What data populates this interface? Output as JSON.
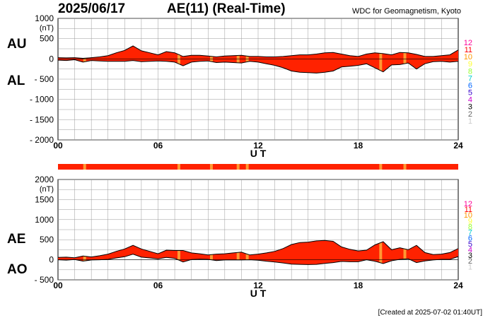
{
  "header": {
    "date": "2025/06/17",
    "title": "AE(11) (Real-Time)",
    "source": "WDC for Geomagnetism, Kyoto"
  },
  "footer": {
    "created": "[Created at 2025-07-02 01:40UT]"
  },
  "legend": {
    "labels": [
      "12",
      "11",
      "10",
      "9",
      "8",
      "7",
      "6",
      "5",
      "4",
      "3",
      "2",
      "1"
    ],
    "colors": [
      "#ff0099",
      "#ff0000",
      "#ff9900",
      "#ffff33",
      "#99ff33",
      "#00cccc",
      "#0066ff",
      "#3300cc",
      "#cc00cc",
      "#000000",
      "#666666",
      "#cccccc"
    ]
  },
  "colors": {
    "fill": "#ff2200",
    "low_station": "#ff9933",
    "outline": "#000000",
    "grid": "#999999"
  },
  "chart_data": [
    {
      "type": "area",
      "panel": "AU/AL",
      "series_labels": [
        "AU",
        "AL"
      ],
      "ylabel": "(nT)",
      "xlabel": "U T",
      "xlim": [
        0,
        24
      ],
      "ylim": [
        -2000,
        1000
      ],
      "xticks": [
        0,
        6,
        12,
        18,
        24
      ],
      "xtick_labels": [
        "00",
        "06",
        "12",
        "18",
        "24"
      ],
      "yticks": [
        1000,
        500,
        0,
        -500,
        -1000,
        -1500,
        -2000
      ],
      "ytick_labels": [
        "1000",
        "500",
        "0",
        "- 500",
        "- 1000",
        "- 1500",
        "- 2000"
      ],
      "grid": true,
      "x_hours": [
        0,
        0.5,
        1,
        1.5,
        2,
        2.5,
        3,
        3.5,
        4,
        4.5,
        5,
        5.5,
        6,
        6.5,
        7,
        7.5,
        8,
        8.5,
        9,
        9.5,
        10,
        10.5,
        11,
        11.5,
        12,
        12.5,
        13,
        13.5,
        14,
        14.5,
        15,
        15.5,
        16,
        16.5,
        17,
        17.5,
        18,
        18.5,
        19,
        19.5,
        20,
        20.5,
        21,
        21.5,
        22,
        22.5,
        23,
        23.5,
        24
      ],
      "AU": [
        30,
        25,
        30,
        15,
        30,
        50,
        80,
        150,
        210,
        320,
        200,
        150,
        100,
        180,
        150,
        60,
        90,
        90,
        70,
        50,
        70,
        80,
        90,
        60,
        60,
        50,
        50,
        60,
        80,
        100,
        100,
        120,
        150,
        160,
        120,
        80,
        60,
        120,
        150,
        130,
        100,
        160,
        150,
        110,
        60,
        60,
        80,
        100,
        220
      ],
      "AL": [
        -30,
        -40,
        -20,
        -80,
        -40,
        -50,
        -60,
        -60,
        -60,
        -40,
        -70,
        -60,
        -50,
        -60,
        -80,
        -170,
        -80,
        -60,
        -50,
        -90,
        -80,
        -90,
        -100,
        -60,
        -80,
        -120,
        -160,
        -220,
        -300,
        -330,
        -340,
        -350,
        -330,
        -300,
        -200,
        -180,
        -160,
        -120,
        -220,
        -320,
        -150,
        -140,
        -100,
        -250,
        -120,
        -70,
        -60,
        -80,
        -60
      ]
    },
    {
      "type": "area",
      "panel": "AE/AO",
      "series_labels": [
        "AE",
        "AO"
      ],
      "ylabel": "(nT)",
      "xlabel": "U T",
      "xlim": [
        0,
        24
      ],
      "ylim": [
        -500,
        2000
      ],
      "xticks": [
        0,
        6,
        12,
        18,
        24
      ],
      "xtick_labels": [
        "00",
        "06",
        "12",
        "18",
        "24"
      ],
      "yticks": [
        2000,
        1500,
        1000,
        500,
        0,
        -500
      ],
      "ytick_labels": [
        "2000",
        "1500",
        "1000",
        "500",
        "0",
        "- 500"
      ],
      "grid": true,
      "x_hours": [
        0,
        0.5,
        1,
        1.5,
        2,
        2.5,
        3,
        3.5,
        4,
        4.5,
        5,
        5.5,
        6,
        6.5,
        7,
        7.5,
        8,
        8.5,
        9,
        9.5,
        10,
        10.5,
        11,
        11.5,
        12,
        12.5,
        13,
        13.5,
        14,
        14.5,
        15,
        15.5,
        16,
        16.5,
        17,
        17.5,
        18,
        18.5,
        19,
        19.5,
        20,
        20.5,
        21,
        21.5,
        22,
        22.5,
        23,
        23.5,
        24
      ],
      "AE": [
        60,
        65,
        50,
        95,
        70,
        100,
        140,
        210,
        270,
        360,
        270,
        210,
        150,
        240,
        230,
        230,
        170,
        150,
        120,
        140,
        150,
        170,
        190,
        120,
        140,
        170,
        210,
        280,
        380,
        430,
        440,
        470,
        480,
        460,
        320,
        260,
        220,
        240,
        370,
        450,
        250,
        300,
        250,
        360,
        180,
        130,
        140,
        180,
        280
      ],
      "AO": [
        0,
        -8,
        5,
        -33,
        -5,
        0,
        10,
        45,
        75,
        140,
        65,
        45,
        25,
        60,
        35,
        -55,
        5,
        15,
        10,
        -20,
        -5,
        -5,
        -5,
        0,
        -10,
        -35,
        -55,
        -80,
        -110,
        -115,
        -120,
        -115,
        -90,
        -70,
        -40,
        -50,
        -50,
        0,
        -35,
        -95,
        -25,
        10,
        25,
        -70,
        -30,
        -5,
        10,
        10,
        80
      ]
    }
  ],
  "station_bars": {
    "note_hours_low_count": [
      1.6,
      7.25,
      9.2,
      10.8,
      11.35,
      19.35,
      20.8
    ]
  }
}
